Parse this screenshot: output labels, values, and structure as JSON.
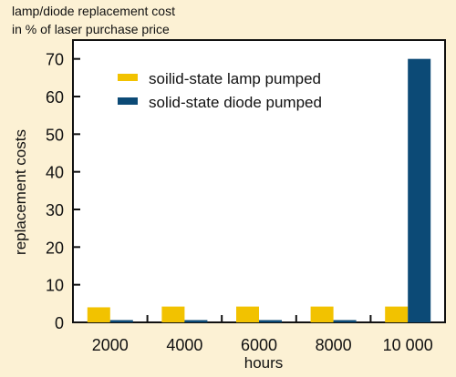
{
  "chart_data": {
    "type": "bar",
    "title_lines": [
      "lamp/diode replacement cost",
      "in % of laser purchase price"
    ],
    "xlabel": "hours",
    "ylabel": "replacement costs",
    "categories": [
      "2000",
      "4000",
      "6000",
      "8000",
      "10 000"
    ],
    "series": [
      {
        "name": "soilid-state lamp pumped",
        "color": "#f2c200",
        "values": [
          4,
          4.2,
          4.2,
          4.2,
          4.2
        ]
      },
      {
        "name": "solid-state diode pumped",
        "color": "#0c4a76",
        "values": [
          0.6,
          0.6,
          0.6,
          0.6,
          70
        ]
      }
    ],
    "ylim": [
      0,
      75
    ],
    "yticks": [
      0,
      10,
      20,
      30,
      40,
      50,
      60,
      70
    ],
    "legend_position": "top-left",
    "grid": false,
    "background_color": "#fcf1d4",
    "plot_background_color": "#ffffff"
  }
}
